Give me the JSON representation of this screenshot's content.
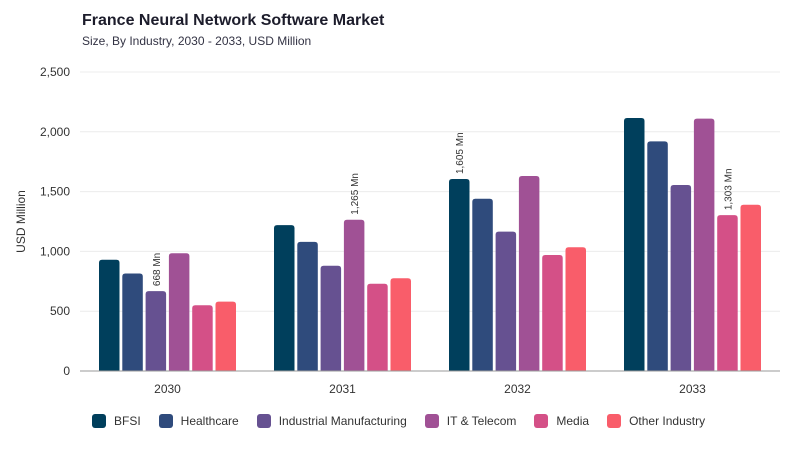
{
  "header": {
    "title": "France Neural Network Software Market",
    "subtitle": "Size, By Industry, 2030 - 2033, USD Million"
  },
  "chart_data": {
    "type": "bar",
    "title": "France Neural Network Software Market",
    "subtitle": "Size, By Industry, 2030 - 2033, USD Million",
    "xlabel": "",
    "ylabel": "USD Million",
    "ylim": [
      0,
      2500
    ],
    "yticks": [
      0,
      500,
      1000,
      1500,
      2000,
      2500
    ],
    "ytick_labels": [
      "0",
      "500",
      "1,000",
      "1,500",
      "2,000",
      "2,500"
    ],
    "categories": [
      "2030",
      "2031",
      "2032",
      "2033"
    ],
    "grid": true,
    "legend_position": "bottom",
    "series": [
      {
        "name": "BFSI",
        "color": "#003f5c",
        "values": [
          930,
          1220,
          1605,
          2115
        ]
      },
      {
        "name": "Healthcare",
        "color": "#2f4b7c",
        "values": [
          815,
          1080,
          1440,
          1920
        ]
      },
      {
        "name": "Industrial Manufacturing",
        "color": "#665191",
        "values": [
          668,
          880,
          1165,
          1555
        ]
      },
      {
        "name": "IT & Telecom",
        "color": "#a05195",
        "values": [
          985,
          1265,
          1630,
          2110
        ]
      },
      {
        "name": "Media",
        "color": "#d45087",
        "values": [
          550,
          730,
          970,
          1303
        ]
      },
      {
        "name": "Other Industry",
        "color": "#f95d6a",
        "values": [
          580,
          775,
          1035,
          1390
        ]
      }
    ],
    "annotations": [
      {
        "category": "2030",
        "series": "Industrial Manufacturing",
        "text": "668 Mn"
      },
      {
        "category": "2031",
        "series": "IT & Telecom",
        "text": "1,265 Mn"
      },
      {
        "category": "2032",
        "series": "BFSI",
        "text": "1,605 Mn"
      },
      {
        "category": "2033",
        "series": "Media",
        "text": "1,303 Mn"
      }
    ]
  }
}
